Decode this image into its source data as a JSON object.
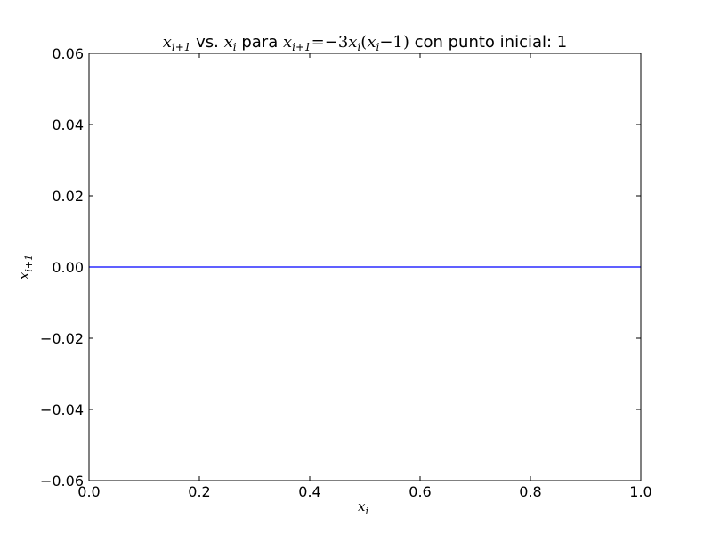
{
  "chart_data": {
    "type": "line",
    "title": {
      "lhs": "x",
      "lhs_sub": "i+1",
      "vs": " vs. ",
      "rhs": "x",
      "rhs_sub": "i",
      "para": " para ",
      "eq_x": "x",
      "eq_x_sub": "i+1",
      "eq_mid": "=−3",
      "eq_x2": "x",
      "eq_x2_sub": "i",
      "eq_paren_open": "(",
      "eq_x3": "x",
      "eq_x3_sub": "i",
      "eq_tail": "−1)",
      "suffix": " con punto inicial: 1"
    },
    "xlabel": "x",
    "xlabel_sub": "i",
    "ylabel": "x",
    "ylabel_sub": "i+1",
    "xlim": [
      0.0,
      1.0
    ],
    "ylim": [
      -0.06,
      0.06
    ],
    "x_ticks": [
      "0.0",
      "0.2",
      "0.4",
      "0.6",
      "0.8",
      "1.0"
    ],
    "y_ticks": [
      "0.06",
      "0.04",
      "0.02",
      "0.00",
      "−0.02",
      "−0.04",
      "−0.06"
    ],
    "grid": false,
    "series": [
      {
        "x": [
          0.0,
          1.0
        ],
        "y": [
          0.0,
          0.0
        ],
        "color": "#0000ff"
      }
    ]
  }
}
